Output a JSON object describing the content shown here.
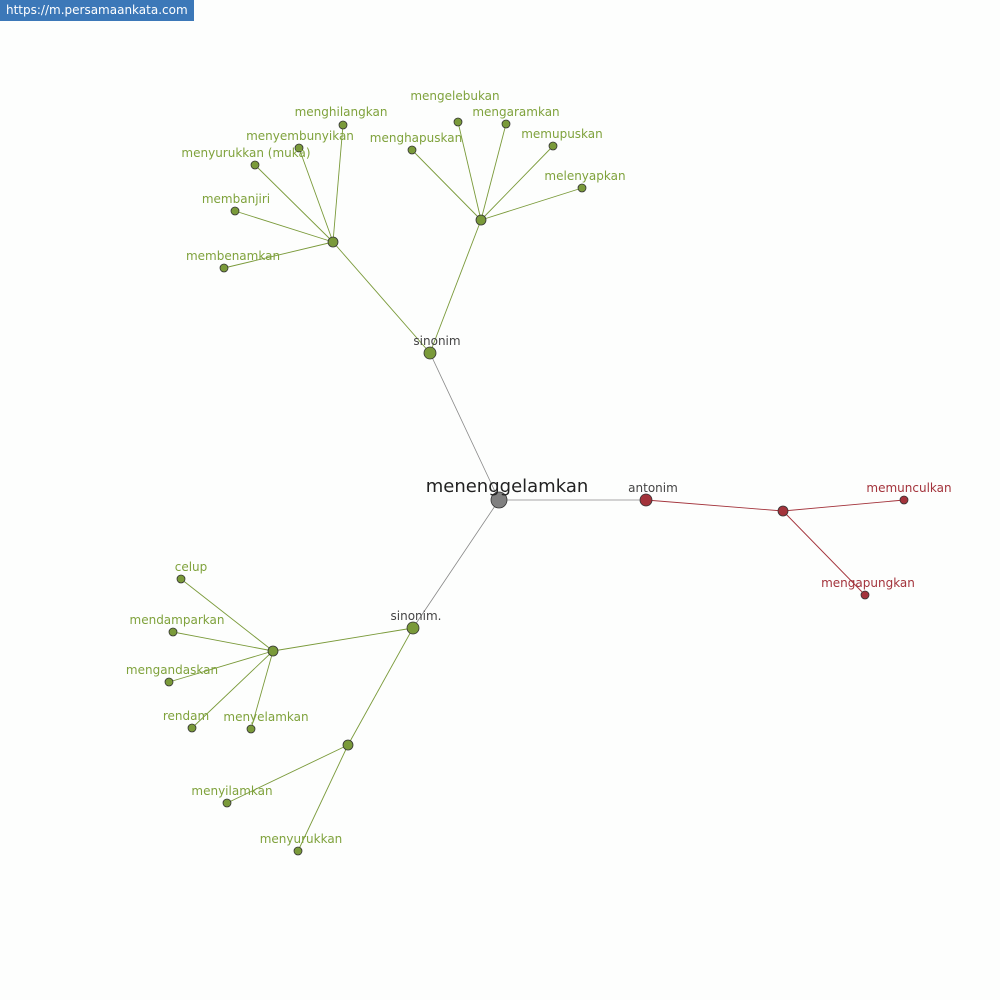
{
  "watermark": "https://m.persamaankata.com",
  "colors": {
    "synonym": "#7a9a3a",
    "synonym_label": "#7fa23c",
    "antonym": "#a3333b",
    "root": "#808080",
    "hub_label": "#444444",
    "root_label": "#222222"
  },
  "graph": {
    "nodes": [
      {
        "id": "root",
        "label": "menenggelamkan",
        "type": "root"
      },
      {
        "id": "s1",
        "label": "sinonim",
        "type": "hub"
      },
      {
        "id": "h1",
        "label": "",
        "type": "syn"
      },
      {
        "id": "h2",
        "label": "",
        "type": "syn"
      },
      {
        "id": "n1",
        "label": "menghilangkan",
        "type": "syn"
      },
      {
        "id": "n2",
        "label": "menyembunyikan",
        "type": "syn"
      },
      {
        "id": "n3",
        "label": "menyurukkan (muka)",
        "type": "syn"
      },
      {
        "id": "n4",
        "label": "membanjiri",
        "type": "syn"
      },
      {
        "id": "n5",
        "label": "membenamkan",
        "type": "syn"
      },
      {
        "id": "n6",
        "label": "mengelebukan",
        "type": "syn"
      },
      {
        "id": "n7",
        "label": "mengaramkan",
        "type": "syn"
      },
      {
        "id": "n8",
        "label": "menghapuskan",
        "type": "syn"
      },
      {
        "id": "n9",
        "label": "memupuskan",
        "type": "syn"
      },
      {
        "id": "n10",
        "label": "melenyapkan",
        "type": "syn"
      },
      {
        "id": "a0",
        "label": "antonim",
        "type": "ahub"
      },
      {
        "id": "a1",
        "label": "",
        "type": "ant"
      },
      {
        "id": "a2",
        "label": "memunculkan",
        "type": "ant"
      },
      {
        "id": "a3",
        "label": "mengapungkan",
        "type": "ant"
      },
      {
        "id": "s2",
        "label": "sinonim.",
        "type": "hub"
      },
      {
        "id": "h3",
        "label": "",
        "type": "syn"
      },
      {
        "id": "h4",
        "label": "",
        "type": "syn"
      },
      {
        "id": "m1",
        "label": "celup",
        "type": "syn"
      },
      {
        "id": "m2",
        "label": "mendamparkan",
        "type": "syn"
      },
      {
        "id": "m3",
        "label": "mengandaskan",
        "type": "syn"
      },
      {
        "id": "m4",
        "label": "rendam",
        "type": "syn"
      },
      {
        "id": "m5",
        "label": "menyelamkan",
        "type": "syn"
      },
      {
        "id": "m6",
        "label": "menyilamkan",
        "type": "syn"
      },
      {
        "id": "m7",
        "label": "menyurukkan",
        "type": "syn"
      }
    ],
    "edges": [
      [
        "root",
        "s1"
      ],
      [
        "root",
        "a0"
      ],
      [
        "root",
        "s2"
      ],
      [
        "s1",
        "h1"
      ],
      [
        "s1",
        "h2"
      ],
      [
        "h1",
        "n1"
      ],
      [
        "h1",
        "n2"
      ],
      [
        "h1",
        "n3"
      ],
      [
        "h1",
        "n4"
      ],
      [
        "h1",
        "n5"
      ],
      [
        "h2",
        "n6"
      ],
      [
        "h2",
        "n7"
      ],
      [
        "h2",
        "n8"
      ],
      [
        "h2",
        "n9"
      ],
      [
        "h2",
        "n10"
      ],
      [
        "a0",
        "a1"
      ],
      [
        "a1",
        "a2"
      ],
      [
        "a1",
        "a3"
      ],
      [
        "s2",
        "h3"
      ],
      [
        "s2",
        "h4"
      ],
      [
        "h3",
        "m1"
      ],
      [
        "h3",
        "m2"
      ],
      [
        "h3",
        "m3"
      ],
      [
        "h3",
        "m4"
      ],
      [
        "h3",
        "m5"
      ],
      [
        "h4",
        "m6"
      ],
      [
        "h4",
        "m7"
      ]
    ]
  }
}
